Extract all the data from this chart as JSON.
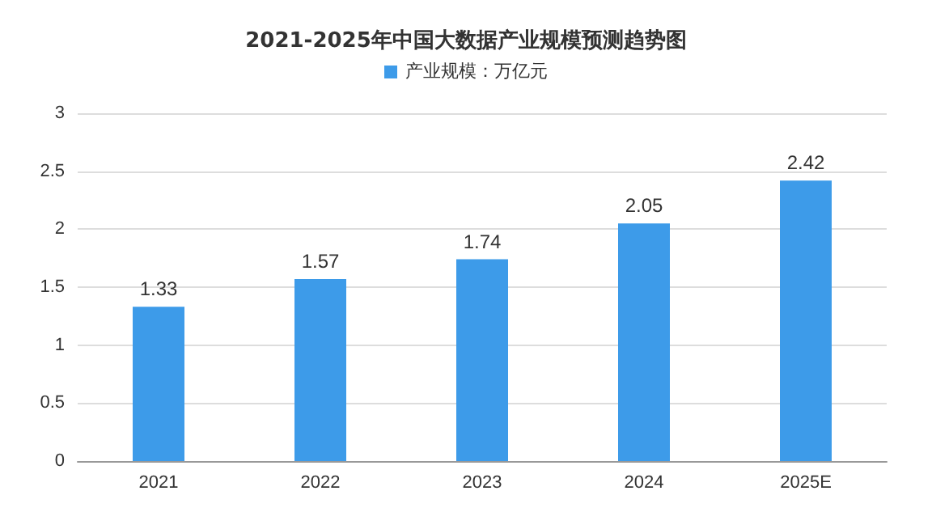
{
  "chart_data": {
    "type": "bar",
    "title": "2021-2025年中国大数据产业规模预测趋势图",
    "categories": [
      "2021",
      "2022",
      "2023",
      "2024",
      "2025E"
    ],
    "series": [
      {
        "name": "产业规模：万亿元",
        "color": "#3d9be9",
        "values": [
          1.33,
          1.57,
          1.74,
          2.05,
          2.42
        ]
      }
    ],
    "ylim": [
      0,
      3
    ],
    "yticks": [
      0,
      0.5,
      1,
      1.5,
      2,
      2.5,
      3
    ],
    "grid": "y",
    "legend": "top",
    "data_labels": true
  }
}
